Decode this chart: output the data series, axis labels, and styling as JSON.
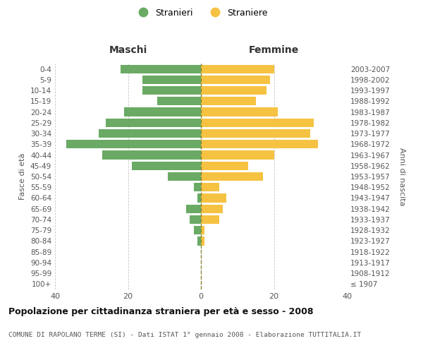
{
  "age_groups": [
    "100+",
    "95-99",
    "90-94",
    "85-89",
    "80-84",
    "75-79",
    "70-74",
    "65-69",
    "60-64",
    "55-59",
    "50-54",
    "45-49",
    "40-44",
    "35-39",
    "30-34",
    "25-29",
    "20-24",
    "15-19",
    "10-14",
    "5-9",
    "0-4"
  ],
  "birth_years": [
    "≤ 1907",
    "1908-1912",
    "1913-1917",
    "1918-1922",
    "1923-1927",
    "1928-1932",
    "1933-1937",
    "1938-1942",
    "1943-1947",
    "1948-1952",
    "1953-1957",
    "1958-1962",
    "1963-1967",
    "1968-1972",
    "1973-1977",
    "1978-1982",
    "1983-1987",
    "1988-1992",
    "1993-1997",
    "1998-2002",
    "2003-2007"
  ],
  "maschi": [
    0,
    0,
    0,
    0,
    1,
    2,
    3,
    4,
    1,
    2,
    9,
    19,
    27,
    37,
    28,
    26,
    21,
    12,
    16,
    16,
    22
  ],
  "femmine": [
    0,
    0,
    0,
    0,
    1,
    1,
    5,
    6,
    7,
    5,
    17,
    13,
    20,
    32,
    30,
    31,
    21,
    15,
    18,
    19,
    20
  ],
  "color_maschi": "#6aaa64",
  "color_femmine": "#f5c242",
  "color_center_line": "#888833",
  "bg_color": "#ffffff",
  "grid_color": "#c8c8c8",
  "title_main": "Popolazione per cittadinanza straniera per età e sesso - 2008",
  "title_sub": "COMUNE DI RAPOLANO TERME (SI) - Dati ISTAT 1° gennaio 2008 - Elaborazione TUTTITALIA.IT",
  "label_maschi": "Maschi",
  "label_femmine": "Femmine",
  "label_fascia": "Fasce di età",
  "label_anni": "Anni di nascita",
  "legend_stranieri": "Stranieri",
  "legend_straniere": "Straniere",
  "xlim": 40
}
